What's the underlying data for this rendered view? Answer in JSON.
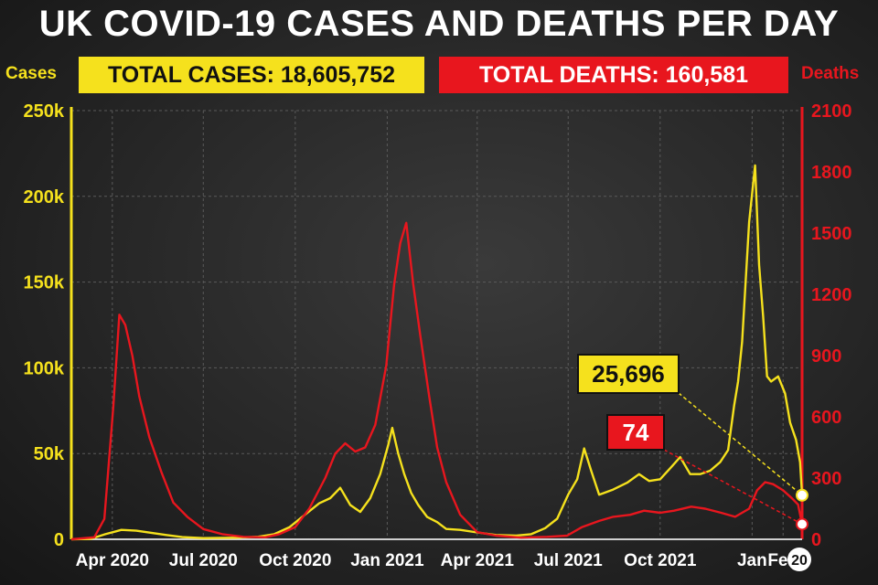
{
  "headline": "UK COVID-19 CASES AND DEATHS PER DAY",
  "totals": {
    "cases": "TOTAL CASES:  18,605,752",
    "deaths": "TOTAL DEATHS: 160,581"
  },
  "colors": {
    "cases": "#f5e11d",
    "deaths": "#e8161e",
    "background": "#2a2a2a"
  },
  "chart_data": {
    "type": "line",
    "title": "UK COVID-19 CASES AND DEATHS PER DAY",
    "y_left": {
      "label": "Cases",
      "range": [
        0,
        250000
      ],
      "ticks": [
        0,
        50000,
        100000,
        150000,
        200000,
        250000
      ],
      "tick_labels": [
        "0",
        "50k",
        "100k",
        "150k",
        "200k",
        "250k"
      ]
    },
    "y_right": {
      "label": "Deaths",
      "range": [
        0,
        2100
      ],
      "ticks": [
        0,
        300,
        600,
        900,
        1200,
        1500,
        1800,
        2100
      ],
      "tick_labels": [
        "0",
        "300",
        "600",
        "900",
        "1200",
        "1500",
        "1800",
        "2100"
      ]
    },
    "x_range": [
      "2020-02-20",
      "2022-02-20"
    ],
    "x_ticks": [
      {
        "date": "2020-04-01",
        "label": "Apr 2020"
      },
      {
        "date": "2020-07-01",
        "label": "Jul 2020"
      },
      {
        "date": "2020-10-01",
        "label": "Oct 2020"
      },
      {
        "date": "2021-01-01",
        "label": "Jan 2021"
      },
      {
        "date": "2021-04-01",
        "label": "Apr 2021"
      },
      {
        "date": "2021-07-01",
        "label": "Jul 2021"
      },
      {
        "date": "2021-10-01",
        "label": "Oct 2021"
      },
      {
        "date": "2022-01-01",
        "label": "Jan"
      },
      {
        "date": "2022-02-01",
        "label": "Feb"
      }
    ],
    "end_label": "20",
    "grid": true,
    "series": [
      {
        "name": "Cases",
        "axis": "left",
        "color": "#f5e11d",
        "points": [
          [
            "2020-02-20",
            0
          ],
          [
            "2020-03-10",
            200
          ],
          [
            "2020-03-25",
            3000
          ],
          [
            "2020-04-10",
            5500
          ],
          [
            "2020-04-25",
            5000
          ],
          [
            "2020-05-10",
            3800
          ],
          [
            "2020-05-25",
            2500
          ],
          [
            "2020-06-10",
            1300
          ],
          [
            "2020-07-01",
            700
          ],
          [
            "2020-08-01",
            900
          ],
          [
            "2020-08-25",
            1500
          ],
          [
            "2020-09-10",
            3000
          ],
          [
            "2020-09-25",
            7000
          ],
          [
            "2020-10-10",
            14000
          ],
          [
            "2020-10-25",
            21000
          ],
          [
            "2020-11-05",
            24000
          ],
          [
            "2020-11-15",
            30000
          ],
          [
            "2020-11-25",
            20000
          ],
          [
            "2020-12-05",
            16000
          ],
          [
            "2020-12-15",
            24000
          ],
          [
            "2020-12-25",
            38000
          ],
          [
            "2021-01-02",
            55000
          ],
          [
            "2021-01-06",
            65000
          ],
          [
            "2021-01-12",
            50000
          ],
          [
            "2021-01-18",
            38000
          ],
          [
            "2021-01-25",
            27000
          ],
          [
            "2021-02-01",
            20000
          ],
          [
            "2021-02-10",
            13000
          ],
          [
            "2021-02-20",
            10000
          ],
          [
            "2021-03-01",
            6000
          ],
          [
            "2021-03-15",
            5500
          ],
          [
            "2021-04-01",
            4000
          ],
          [
            "2021-04-20",
            2500
          ],
          [
            "2021-05-10",
            2200
          ],
          [
            "2021-05-25",
            3000
          ],
          [
            "2021-06-08",
            6500
          ],
          [
            "2021-06-20",
            12000
          ],
          [
            "2021-07-01",
            26000
          ],
          [
            "2021-07-10",
            35000
          ],
          [
            "2021-07-17",
            53000
          ],
          [
            "2021-07-24",
            40000
          ],
          [
            "2021-08-01",
            26000
          ],
          [
            "2021-08-15",
            29000
          ],
          [
            "2021-08-29",
            33000
          ],
          [
            "2021-09-10",
            38000
          ],
          [
            "2021-09-20",
            34000
          ],
          [
            "2021-10-01",
            35000
          ],
          [
            "2021-10-12",
            42000
          ],
          [
            "2021-10-21",
            48000
          ],
          [
            "2021-10-31",
            38000
          ],
          [
            "2021-11-10",
            38000
          ],
          [
            "2021-11-20",
            40000
          ],
          [
            "2021-11-30",
            45000
          ],
          [
            "2021-12-08",
            52000
          ],
          [
            "2021-12-14",
            78000
          ],
          [
            "2021-12-18",
            92000
          ],
          [
            "2021-12-22",
            115000
          ],
          [
            "2021-12-29",
            185000
          ],
          [
            "2022-01-04",
            218000
          ],
          [
            "2022-01-08",
            160000
          ],
          [
            "2022-01-12",
            130000
          ],
          [
            "2022-01-16",
            95000
          ],
          [
            "2022-01-20",
            92000
          ],
          [
            "2022-01-27",
            95000
          ],
          [
            "2022-02-03",
            85000
          ],
          [
            "2022-02-08",
            68000
          ],
          [
            "2022-02-14",
            58000
          ],
          [
            "2022-02-18",
            45000
          ],
          [
            "2022-02-20",
            25696
          ]
        ]
      },
      {
        "name": "Deaths",
        "axis": "right",
        "color": "#e8161e",
        "points": [
          [
            "2020-02-20",
            0
          ],
          [
            "2020-03-14",
            10
          ],
          [
            "2020-03-24",
            100
          ],
          [
            "2020-04-02",
            650
          ],
          [
            "2020-04-08",
            1100
          ],
          [
            "2020-04-14",
            1050
          ],
          [
            "2020-04-21",
            900
          ],
          [
            "2020-04-28",
            700
          ],
          [
            "2020-05-08",
            500
          ],
          [
            "2020-05-20",
            330
          ],
          [
            "2020-06-01",
            180
          ],
          [
            "2020-06-15",
            110
          ],
          [
            "2020-07-01",
            50
          ],
          [
            "2020-07-20",
            25
          ],
          [
            "2020-08-10",
            12
          ],
          [
            "2020-09-01",
            10
          ],
          [
            "2020-09-15",
            25
          ],
          [
            "2020-10-01",
            60
          ],
          [
            "2020-10-15",
            150
          ],
          [
            "2020-10-31",
            300
          ],
          [
            "2020-11-10",
            420
          ],
          [
            "2020-11-20",
            470
          ],
          [
            "2020-11-30",
            430
          ],
          [
            "2020-12-10",
            450
          ],
          [
            "2020-12-20",
            560
          ],
          [
            "2020-12-31",
            850
          ],
          [
            "2021-01-08",
            1250
          ],
          [
            "2021-01-14",
            1450
          ],
          [
            "2021-01-20",
            1550
          ],
          [
            "2021-01-27",
            1250
          ],
          [
            "2021-02-03",
            1000
          ],
          [
            "2021-02-12",
            700
          ],
          [
            "2021-02-20",
            450
          ],
          [
            "2021-03-01",
            280
          ],
          [
            "2021-03-15",
            120
          ],
          [
            "2021-04-01",
            35
          ],
          [
            "2021-04-20",
            18
          ],
          [
            "2021-05-15",
            8
          ],
          [
            "2021-06-10",
            12
          ],
          [
            "2021-06-30",
            18
          ],
          [
            "2021-07-15",
            60
          ],
          [
            "2021-08-01",
            90
          ],
          [
            "2021-08-15",
            110
          ],
          [
            "2021-09-01",
            120
          ],
          [
            "2021-09-15",
            140
          ],
          [
            "2021-10-01",
            130
          ],
          [
            "2021-10-15",
            140
          ],
          [
            "2021-11-01",
            160
          ],
          [
            "2021-11-15",
            150
          ],
          [
            "2021-12-01",
            130
          ],
          [
            "2021-12-15",
            110
          ],
          [
            "2021-12-29",
            150
          ],
          [
            "2022-01-06",
            240
          ],
          [
            "2022-01-14",
            280
          ],
          [
            "2022-01-22",
            270
          ],
          [
            "2022-02-01",
            240
          ],
          [
            "2022-02-10",
            200
          ],
          [
            "2022-02-16",
            170
          ],
          [
            "2022-02-20",
            74
          ]
        ]
      }
    ],
    "annotations": [
      {
        "series": "Cases",
        "date": "2022-02-20",
        "value": 25696,
        "label": "25,696"
      },
      {
        "series": "Deaths",
        "date": "2022-02-20",
        "value": 74,
        "label": "74"
      }
    ]
  }
}
